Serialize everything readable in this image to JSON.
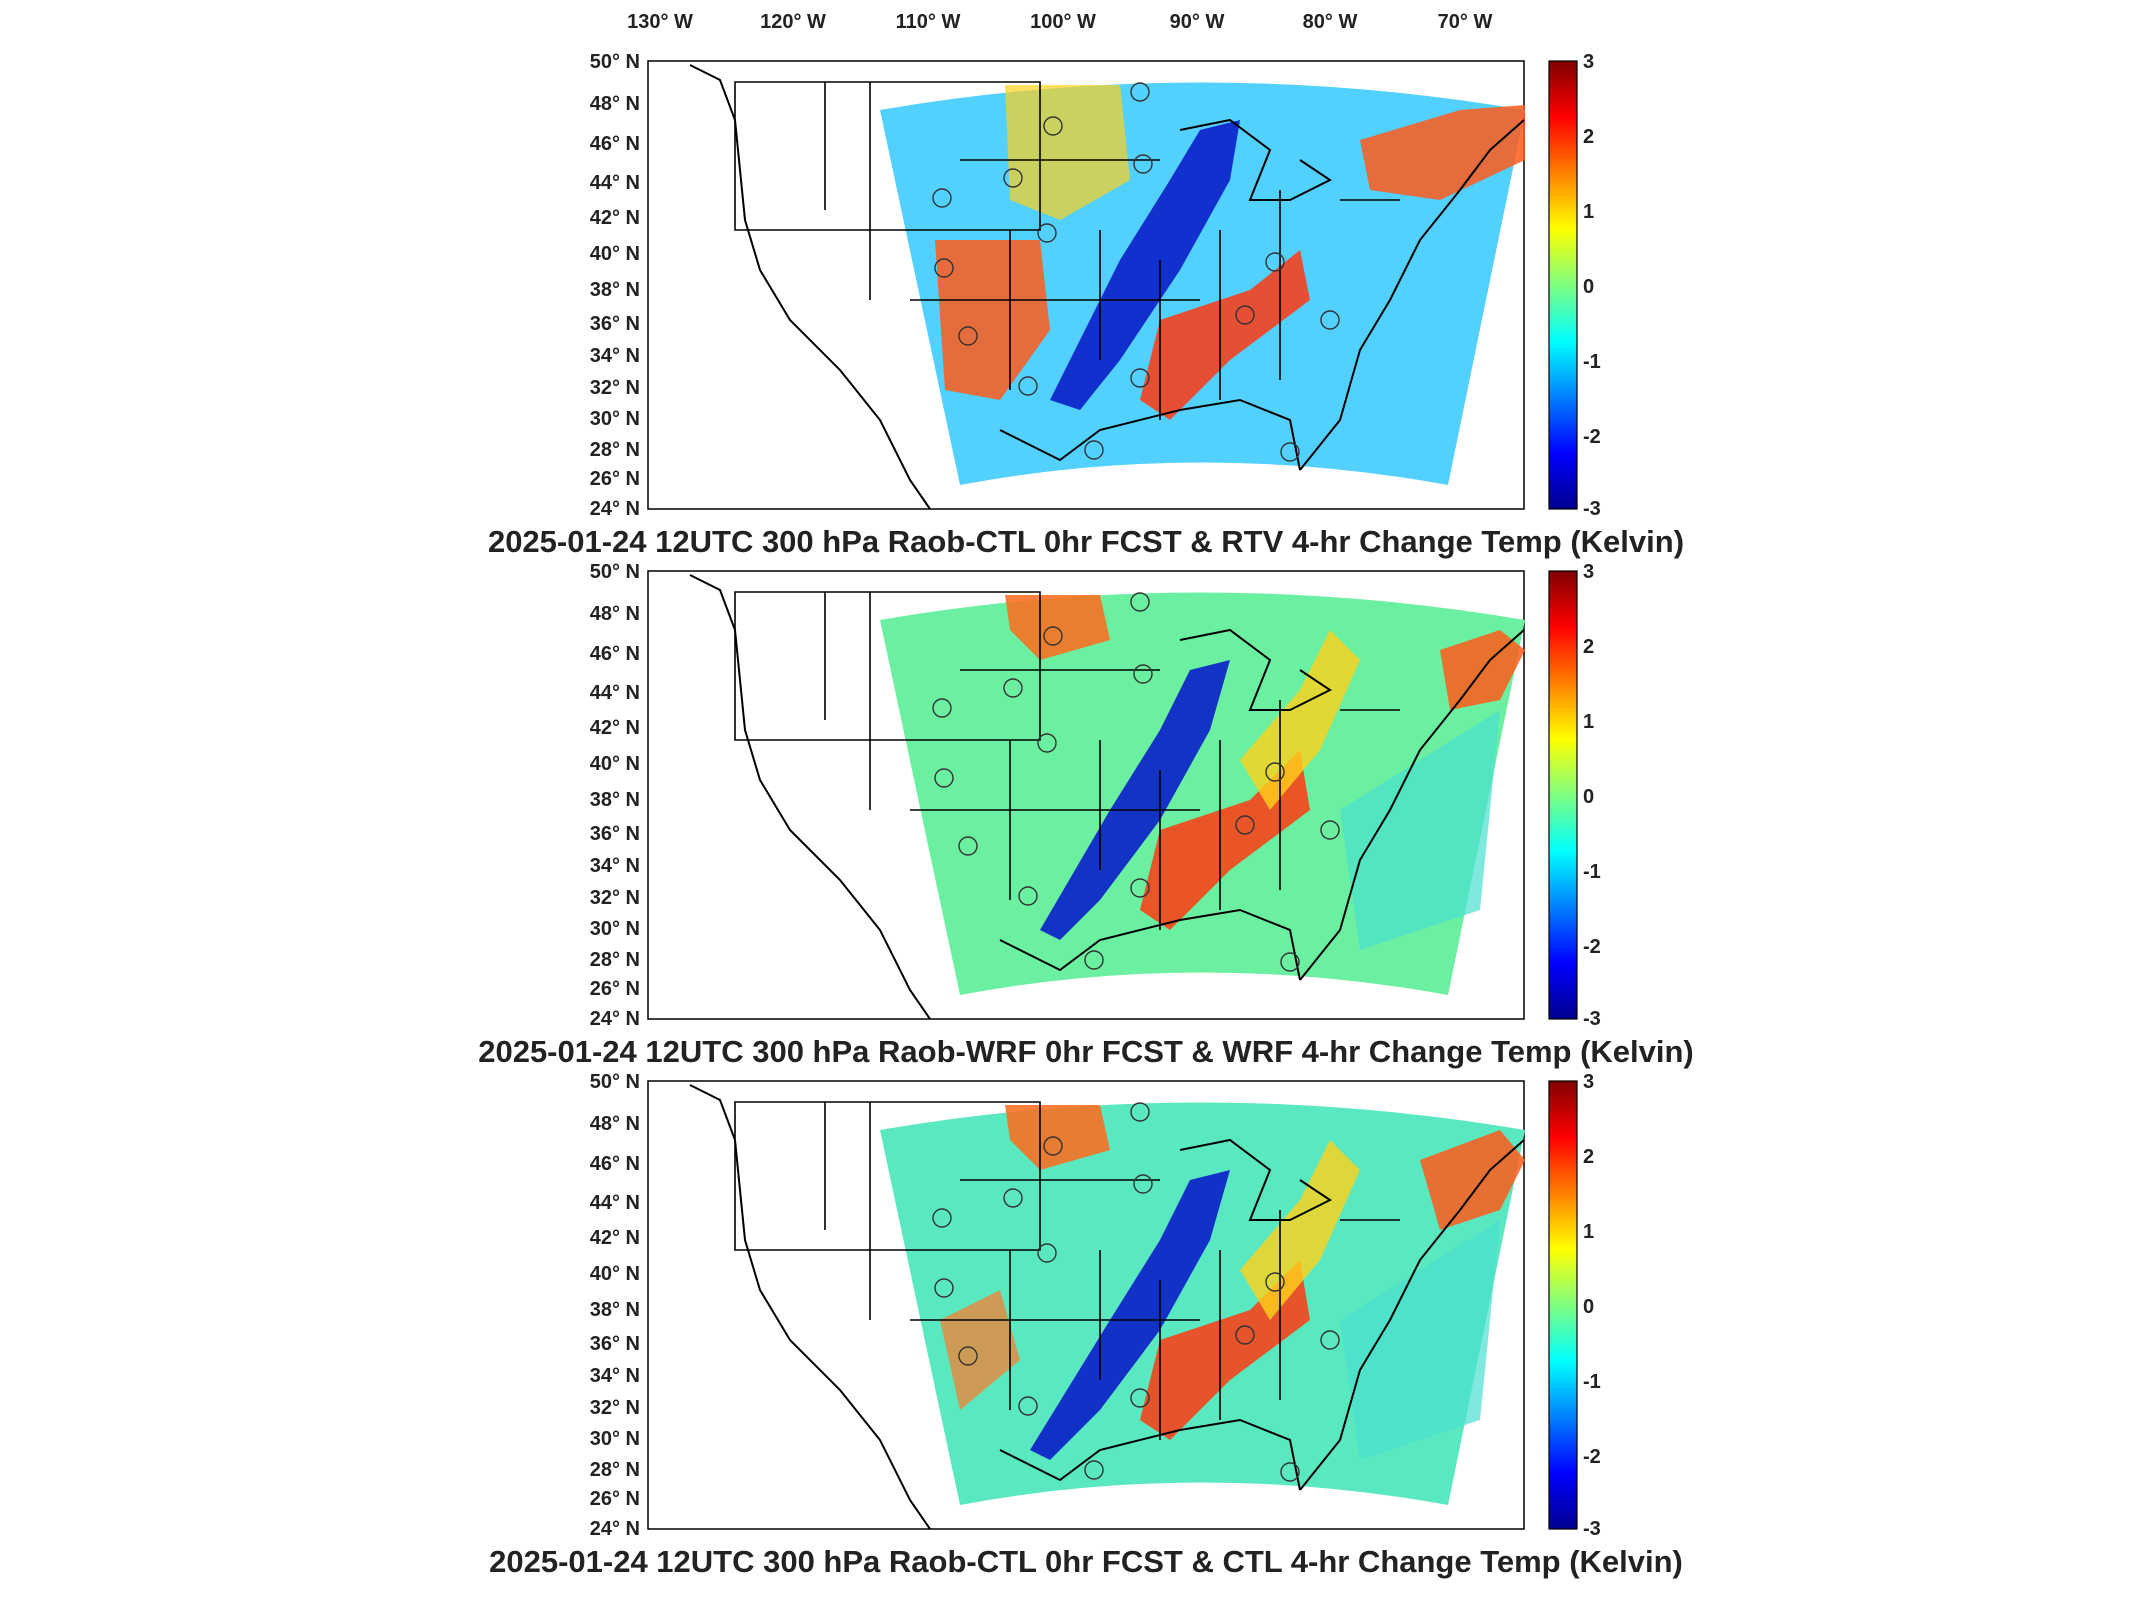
{
  "lon_ticks": [
    "130° W",
    "120° W",
    "110° W",
    "100° W",
    "90° W",
    "80° W",
    "70° W"
  ],
  "lat_ticks": [
    "50° N",
    "48° N",
    "46° N",
    "44° N",
    "42° N",
    "40° N",
    "38° N",
    "36° N",
    "34° N",
    "32° N",
    "30° N",
    "28° N",
    "26° N",
    "24° N"
  ],
  "colorbar": {
    "ticks": [
      "3",
      "2",
      "1",
      "0",
      "-1",
      "-2",
      "-3"
    ],
    "range": [
      -3,
      3
    ],
    "colormap": "jet"
  },
  "colors": {
    "low": "#00008f",
    "mid": "#7fff7f",
    "high": "#800000",
    "coast": "#000000"
  },
  "panels": [
    {
      "title": "2025-01-24 12UTC 300 hPa Raob-CTL 0hr FCST & RTV 4-hr Change Temp (Kelvin)"
    },
    {
      "title": "2025-01-24 12UTC 300 hPa Raob-WRF 0hr FCST & WRF 4-hr Change Temp (Kelvin)"
    },
    {
      "title": "2025-01-24 12UTC 300 hPa Raob-CTL 0hr FCST & CTL 4-hr Change Temp (Kelvin)"
    }
  ]
}
